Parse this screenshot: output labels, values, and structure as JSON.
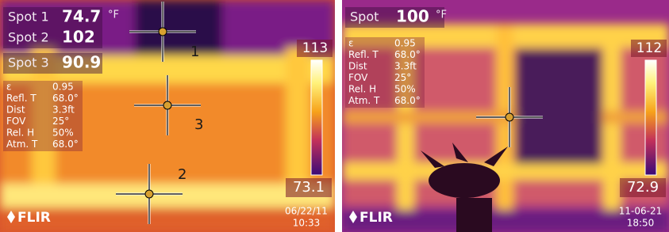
{
  "panels": [
    {
      "spots": [
        {
          "label": "Spot 1",
          "value": "74.7"
        },
        {
          "label": "Spot 2",
          "value": "102"
        },
        {
          "label": "Spot 3",
          "value": "90.9"
        }
      ],
      "unit": "°F",
      "params": [
        {
          "label": "ε",
          "value": "0.95"
        },
        {
          "label": "Refl. T",
          "value": "68.0°"
        },
        {
          "label": "Dist",
          "value": "3.3ft"
        },
        {
          "label": "FOV",
          "value": "25°"
        },
        {
          "label": "Rel. H",
          "value": "50%"
        },
        {
          "label": "Atm. T",
          "value": "68.0°"
        }
      ],
      "scale": {
        "max": "113",
        "min": "73.1"
      },
      "markers": [
        "1",
        "3",
        "2"
      ],
      "logo": "FLIR",
      "date": "06/22/11",
      "time": "10:33"
    },
    {
      "spots": [
        {
          "label": "Spot",
          "value": "100"
        }
      ],
      "unit": "°F",
      "params": [
        {
          "label": "ε",
          "value": "0.95"
        },
        {
          "label": "Refl. T",
          "value": "68.0°"
        },
        {
          "label": "Dist",
          "value": "3.3ft"
        },
        {
          "label": "FOV",
          "value": "25°"
        },
        {
          "label": "Rel. H",
          "value": "50%"
        },
        {
          "label": "Atm. T",
          "value": "68.0°"
        }
      ],
      "scale": {
        "max": "112",
        "min": "72.9"
      },
      "markers": [],
      "logo": "FLIR",
      "date": "11-06-21",
      "time": "18:50"
    }
  ]
}
